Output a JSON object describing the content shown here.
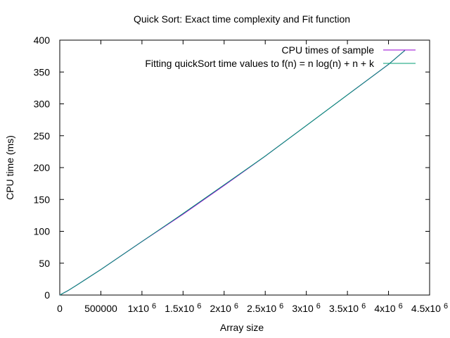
{
  "chart_data": {
    "type": "line",
    "title": "Quick Sort: Exact time complexity and Fit function",
    "xlabel": "Array size",
    "ylabel": "CPU time (ms)",
    "xlim": [
      0,
      4500000
    ],
    "ylim": [
      0,
      400
    ],
    "grid": false,
    "legend_position": "top-right",
    "x_ticks": [
      {
        "value": 0,
        "label": "0"
      },
      {
        "value": 500000,
        "label": "500000"
      },
      {
        "value": 1000000,
        "label": "1x10",
        "exp": "6"
      },
      {
        "value": 1500000,
        "label": "1.5x10",
        "exp": "6"
      },
      {
        "value": 2000000,
        "label": "2x10",
        "exp": "6"
      },
      {
        "value": 2500000,
        "label": "2.5x10",
        "exp": "6"
      },
      {
        "value": 3000000,
        "label": "3x10",
        "exp": "6"
      },
      {
        "value": 3500000,
        "label": "3.5x10",
        "exp": "6"
      },
      {
        "value": 4000000,
        "label": "4x10",
        "exp": "6"
      },
      {
        "value": 4500000,
        "label": "4.5x10",
        "exp": "6"
      }
    ],
    "y_ticks": [
      {
        "value": 0,
        "label": "0"
      },
      {
        "value": 50,
        "label": "50"
      },
      {
        "value": 100,
        "label": "100"
      },
      {
        "value": 150,
        "label": "150"
      },
      {
        "value": 200,
        "label": "200"
      },
      {
        "value": 250,
        "label": "250"
      },
      {
        "value": 300,
        "label": "300"
      },
      {
        "value": 350,
        "label": "350"
      },
      {
        "value": 400,
        "label": "400"
      }
    ],
    "series": [
      {
        "name": "CPU times of sample",
        "color": "#9400d3",
        "x": [
          0,
          100000,
          200000,
          500000,
          1000000,
          1500000,
          2000000,
          2500000,
          3000000,
          3500000,
          4000000,
          4200000
        ],
        "y": [
          0,
          7,
          15,
          40,
          84,
          127,
          172,
          218,
          266,
          314,
          362,
          384
        ]
      },
      {
        "name": "Fitting quickSort time values to f(n) = n log(n) + n + k",
        "color": "#009e73",
        "x": [
          0,
          100000,
          200000,
          500000,
          1000000,
          1500000,
          2000000,
          2500000,
          3000000,
          3500000,
          4000000,
          4200000
        ],
        "y": [
          0,
          7,
          15,
          40,
          84,
          128,
          173,
          218,
          266,
          314,
          362,
          384
        ]
      }
    ]
  }
}
